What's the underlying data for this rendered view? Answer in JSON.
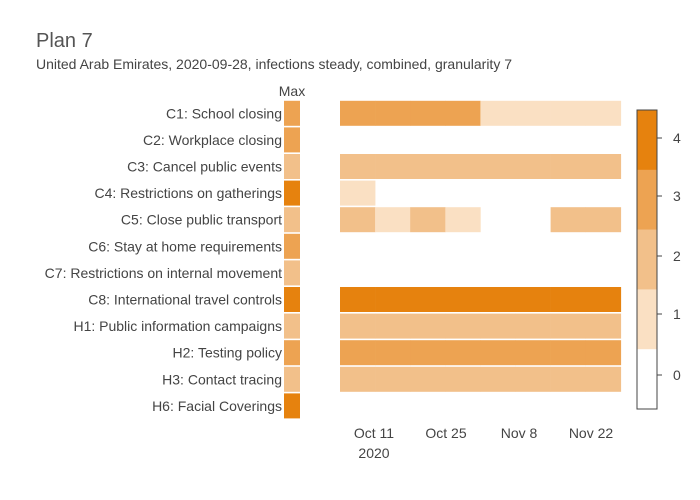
{
  "chart_data": {
    "type": "heatmap",
    "title": "Plan 7",
    "subtitle": "United Arab Emirates, 2020-09-28, infections steady, combined, granularity 7",
    "max_label": "Max",
    "categories": [
      "C1: School closing",
      "C2: Workplace closing",
      "C3: Cancel public events",
      "C4: Restrictions on gatherings",
      "C5: Close public transport",
      "C6: Stay at home requirements",
      "C7: Restrictions on internal movement",
      "C8: International travel controls",
      "H1: Public information campaigns",
      "H2: Testing policy",
      "H3: Contact tracing",
      "H6: Facial Coverings"
    ],
    "max_values": [
      3,
      3,
      2,
      4,
      2,
      3,
      2,
      4,
      2,
      3,
      2,
      4
    ],
    "x_ticks": [
      "Oct 11",
      "Oct 25",
      "Nov 8",
      "Nov 22"
    ],
    "x_tick_year": "2020",
    "weeks": [
      "2020-09-28",
      "2020-10-05",
      "2020-10-12",
      "2020-10-19",
      "2020-10-26",
      "2020-11-02",
      "2020-11-09",
      "2020-11-16"
    ],
    "values": [
      [
        3,
        3,
        3,
        3,
        1,
        1,
        1,
        1
      ],
      [
        null,
        null,
        null,
        null,
        null,
        null,
        null,
        null
      ],
      [
        2,
        2,
        2,
        2,
        2,
        2,
        2,
        2
      ],
      [
        1,
        null,
        null,
        null,
        null,
        null,
        null,
        null
      ],
      [
        2,
        1,
        2,
        1,
        null,
        null,
        2,
        2
      ],
      [
        null,
        null,
        null,
        null,
        null,
        null,
        null,
        null
      ],
      [
        null,
        null,
        null,
        null,
        null,
        null,
        null,
        null
      ],
      [
        4,
        4,
        4,
        4,
        4,
        4,
        4,
        4
      ],
      [
        2,
        2,
        2,
        2,
        2,
        2,
        2,
        2
      ],
      [
        3,
        3,
        3,
        3,
        3,
        3,
        3,
        3
      ],
      [
        2,
        2,
        2,
        2,
        2,
        2,
        2,
        2
      ],
      [
        null,
        null,
        null,
        null,
        null,
        null,
        null,
        null
      ]
    ],
    "colorbar": {
      "ticks": [
        "0",
        "1",
        "2",
        "3",
        "4"
      ],
      "colors": [
        "#ffffff",
        "#fae0c3",
        "#f2c08a",
        "#eda352",
        "#e6820e"
      ]
    }
  }
}
